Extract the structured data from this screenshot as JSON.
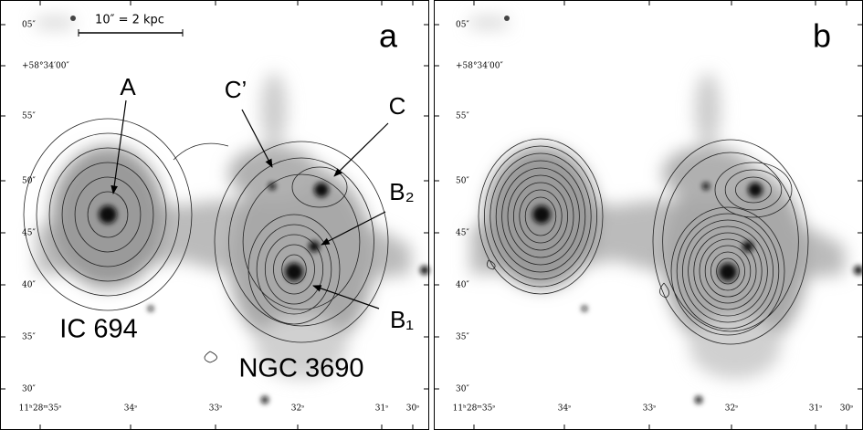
{
  "panels": [
    {
      "letter": "a",
      "y_labels": [
        "05″",
        "+58°34′00″",
        "55″",
        "50″",
        "45″",
        "40″",
        "35″",
        "30″"
      ],
      "x_labels": [
        "11ʰ28ᵐ35ˢ",
        "34ˢ",
        "33ˢ",
        "32ˢ",
        "31ˢ",
        "30ˢ"
      ],
      "scale_bar": "10″ = 2 kpc",
      "annotations": [
        "A",
        "C’",
        "C",
        "B₂",
        "B₁",
        "IC 694",
        "NGC 3690"
      ]
    },
    {
      "letter": "b",
      "y_labels": [
        "05″",
        "+58°34′00″",
        "55″",
        "50″",
        "45″",
        "40″",
        "35″",
        "30″"
      ],
      "x_labels": [
        "11ʰ28ᵐ35ˢ",
        "34ˢ",
        "33ˢ",
        "32ˢ",
        "31ˢ",
        "30ˢ"
      ]
    }
  ]
}
